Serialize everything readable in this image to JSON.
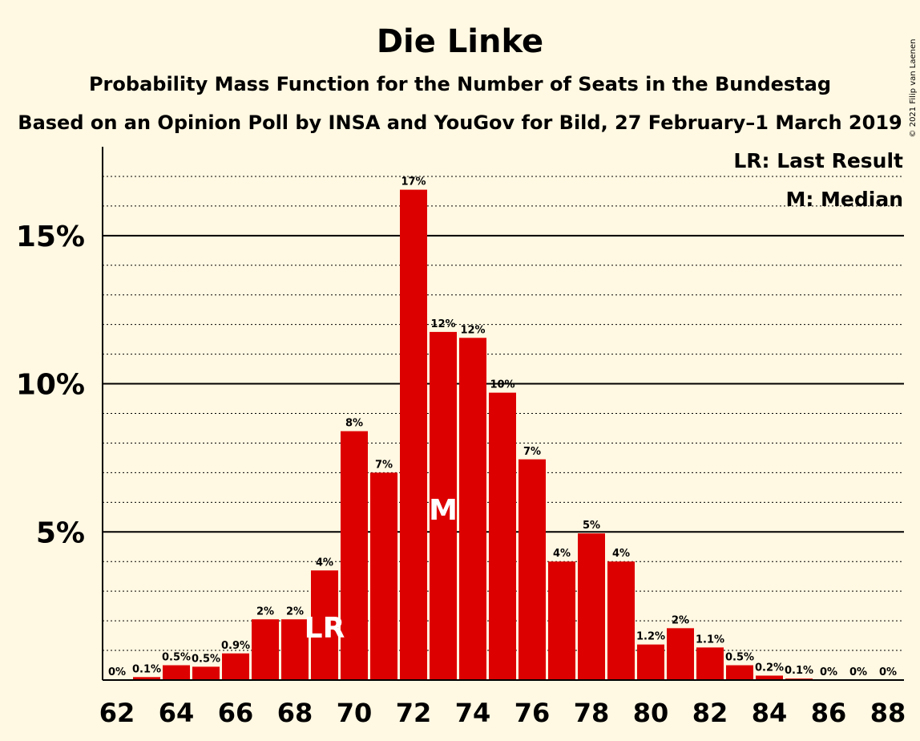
{
  "chart_data": {
    "type": "bar",
    "title": "Die Linke",
    "subtitle": "Probability Mass Function for the Number of Seats in the Bundestag",
    "source": "Based on an Opinion Poll by INSA and YouGov for Bild, 27 February–1 March 2019",
    "copyright": "© 2021 Filip van Laenen",
    "legend": {
      "placement": "top-right",
      "items": [
        "LR: Last Result",
        "M: Median"
      ]
    },
    "categories": [
      62,
      63,
      64,
      65,
      66,
      67,
      68,
      69,
      70,
      71,
      72,
      73,
      74,
      75,
      76,
      77,
      78,
      79,
      80,
      81,
      82,
      83,
      84,
      85,
      86,
      87,
      88
    ],
    "x_tick_labels": [
      "62",
      "64",
      "66",
      "68",
      "70",
      "72",
      "74",
      "76",
      "78",
      "80",
      "82",
      "84",
      "86",
      "88"
    ],
    "values": [
      0,
      0.1,
      0.5,
      0.45,
      0.9,
      2.05,
      2.05,
      3.7,
      8.4,
      7.0,
      16.55,
      11.75,
      11.55,
      9.7,
      7.45,
      4.0,
      4.95,
      4.0,
      1.2,
      1.75,
      1.1,
      0.5,
      0.15,
      0.05,
      0,
      0,
      0
    ],
    "value_labels": [
      "0%",
      "0.1%",
      "0.5%",
      "0.5%",
      "0.9%",
      "2%",
      "2%",
      "4%",
      "8%",
      "7%",
      "17%",
      "12%",
      "12%",
      "10%",
      "7%",
      "4%",
      "5%",
      "4%",
      "1.2%",
      "2%",
      "1.1%",
      "0.5%",
      "0.2%",
      "0.1%",
      "0%",
      "0%",
      "0%"
    ],
    "y_tick_values": [
      5,
      10,
      15
    ],
    "y_tick_labels": [
      "5%",
      "10%",
      "15%"
    ],
    "ylim": [
      0,
      18
    ],
    "minor_gridline_step": 1,
    "last_result": {
      "seat": 69,
      "label": "LR"
    },
    "median": {
      "seat": 73,
      "label": "M"
    },
    "colors": {
      "bar": "#dd0000",
      "background": "#fff8e2",
      "axis": "#000000",
      "marker_text": "#ffffff"
    }
  }
}
